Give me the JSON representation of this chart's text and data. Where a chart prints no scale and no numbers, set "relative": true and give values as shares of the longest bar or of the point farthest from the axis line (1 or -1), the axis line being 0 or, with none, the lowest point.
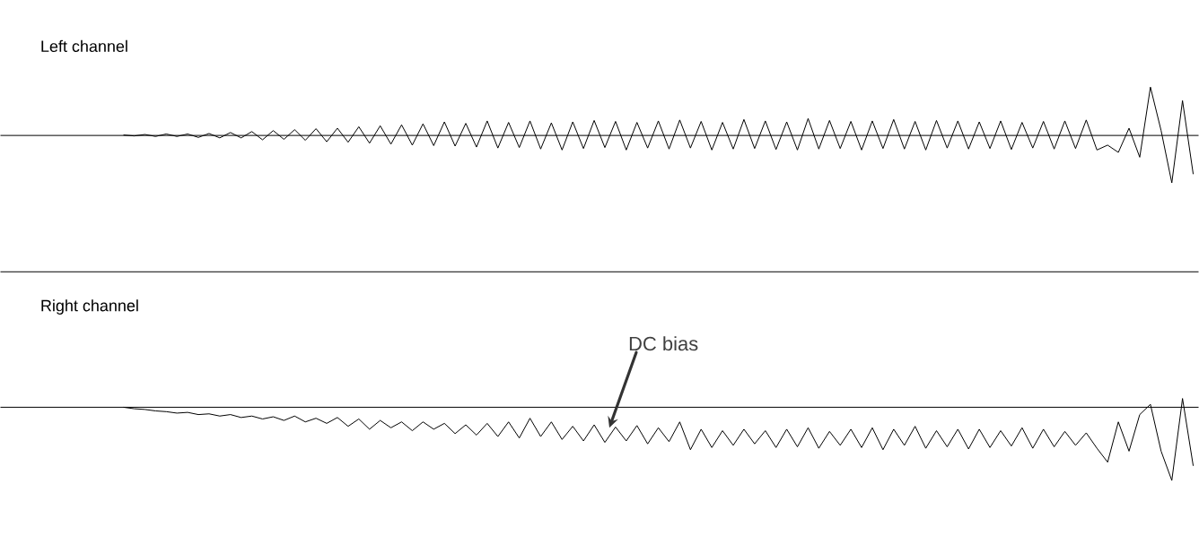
{
  "chart_data": [
    {
      "type": "line",
      "title": "Left channel",
      "relative": true,
      "color": "#000000",
      "categories": [
        null,
        null,
        null,
        null,
        null,
        null,
        null,
        null,
        null,
        null,
        null,
        null,
        null,
        null,
        null,
        null,
        null,
        null,
        null,
        null,
        null,
        null,
        null,
        null,
        null,
        null,
        null,
        null,
        null,
        null,
        null,
        null,
        null,
        null,
        null,
        null,
        null,
        null,
        null,
        null,
        null,
        null,
        null,
        null,
        null,
        null,
        null,
        null,
        null,
        null,
        null,
        null,
        null,
        null,
        null,
        null,
        null,
        null,
        null,
        null,
        null,
        null,
        null,
        null,
        null,
        null,
        null,
        null,
        null,
        null,
        null,
        null,
        null,
        null,
        null,
        null,
        null,
        null,
        null,
        null,
        null,
        null,
        null,
        null,
        null,
        null,
        null,
        null,
        null,
        null,
        null,
        null,
        null,
        null,
        null,
        null,
        null,
        null,
        null,
        null,
        null,
        null,
        null,
        null,
        null,
        null,
        null,
        null,
        null,
        null,
        null,
        null
      ],
      "values": [
        null,
        null,
        null,
        null,
        null,
        null,
        null,
        null,
        null,
        null,
        null,
        0.01,
        -0.01,
        0.02,
        -0.02,
        0.03,
        -0.02,
        0.03,
        -0.04,
        0.04,
        -0.05,
        0.06,
        -0.05,
        0.08,
        -0.09,
        0.1,
        -0.08,
        0.12,
        -0.1,
        0.14,
        -0.13,
        0.15,
        -0.14,
        0.18,
        -0.16,
        0.2,
        -0.18,
        0.22,
        -0.2,
        0.24,
        -0.21,
        0.28,
        -0.22,
        0.25,
        -0.24,
        0.3,
        -0.26,
        0.27,
        -0.25,
        0.3,
        -0.28,
        0.26,
        -0.3,
        0.28,
        -0.27,
        0.31,
        -0.25,
        0.29,
        -0.3,
        0.27,
        -0.26,
        0.3,
        -0.28,
        0.32,
        -0.26,
        0.29,
        -0.3,
        0.27,
        -0.28,
        0.33,
        -0.27,
        0.3,
        -0.29,
        0.28,
        -0.3,
        0.35,
        -0.28,
        0.31,
        -0.27,
        0.29,
        -0.3,
        0.3,
        -0.27,
        0.33,
        -0.28,
        0.29,
        -0.3,
        0.31,
        -0.26,
        0.3,
        -0.28,
        0.28,
        -0.27,
        0.3,
        -0.29,
        0.27,
        -0.26,
        0.29,
        -0.28,
        0.3,
        -0.27,
        0.32,
        -0.3,
        -0.2,
        -0.35,
        0.15,
        -0.45,
        1.0,
        0.1,
        -0.98,
        0.72,
        -0.8
      ]
    },
    {
      "type": "line",
      "title": "Right channel",
      "relative": true,
      "color": "#000000",
      "annotations": [
        "DC bias"
      ],
      "categories": [
        null,
        null,
        null,
        null,
        null,
        null,
        null,
        null,
        null,
        null,
        null,
        null,
        null,
        null,
        null,
        null,
        null,
        null,
        null,
        null,
        null,
        null,
        null,
        null,
        null,
        null,
        null,
        null,
        null,
        null,
        null,
        null,
        null,
        null,
        null,
        null,
        null,
        null,
        null,
        null,
        null,
        null,
        null,
        null,
        null,
        null,
        null,
        null,
        null,
        null,
        null,
        null,
        null,
        null,
        null,
        null,
        null,
        null,
        null,
        null,
        null,
        null,
        null,
        null,
        null,
        null,
        null,
        null,
        null,
        null,
        null,
        null,
        null,
        null,
        null,
        null,
        null,
        null,
        null,
        null,
        null,
        null,
        null,
        null,
        null,
        null,
        null,
        null,
        null,
        null,
        null,
        null,
        null,
        null,
        null,
        null,
        null,
        null,
        null,
        null,
        null,
        null,
        null,
        null,
        null,
        null,
        null,
        null,
        null,
        null,
        null,
        null
      ],
      "values": [
        null,
        null,
        null,
        null,
        null,
        null,
        null,
        null,
        null,
        null,
        null,
        0,
        -0.02,
        -0.03,
        -0.05,
        -0.06,
        -0.08,
        -0.07,
        -0.1,
        -0.09,
        -0.12,
        -0.1,
        -0.14,
        -0.12,
        -0.16,
        -0.13,
        -0.18,
        -0.12,
        -0.2,
        -0.15,
        -0.22,
        -0.14,
        -0.26,
        -0.16,
        -0.3,
        -0.18,
        -0.28,
        -0.2,
        -0.32,
        -0.2,
        -0.3,
        -0.22,
        -0.36,
        -0.24,
        -0.38,
        -0.22,
        -0.4,
        -0.2,
        -0.42,
        -0.15,
        -0.4,
        -0.2,
        -0.44,
        -0.26,
        -0.46,
        -0.24,
        -0.48,
        -0.27,
        -0.46,
        -0.25,
        -0.5,
        -0.28,
        -0.47,
        -0.2,
        -0.58,
        -0.3,
        -0.55,
        -0.32,
        -0.52,
        -0.3,
        -0.5,
        -0.32,
        -0.55,
        -0.3,
        -0.54,
        -0.28,
        -0.56,
        -0.33,
        -0.52,
        -0.3,
        -0.55,
        -0.28,
        -0.58,
        -0.3,
        -0.52,
        -0.26,
        -0.56,
        -0.32,
        -0.54,
        -0.3,
        -0.57,
        -0.3,
        -0.55,
        -0.32,
        -0.53,
        -0.28,
        -0.56,
        -0.3,
        -0.54,
        -0.33,
        -0.52,
        -0.35,
        -0.56,
        -0.75,
        -0.2,
        -0.6,
        -0.1,
        0.04,
        -0.6,
        -1.0,
        0.12,
        -0.8
      ]
    }
  ]
}
